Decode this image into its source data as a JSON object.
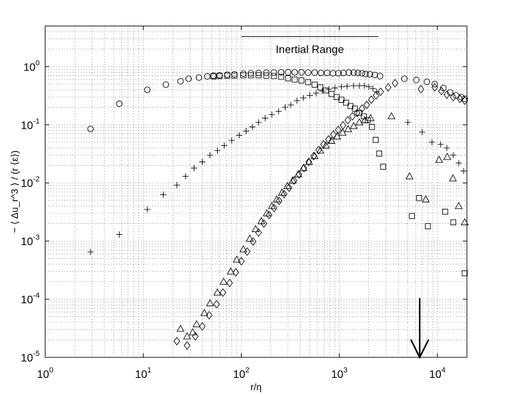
{
  "chart_data": {
    "type": "scatter",
    "xscale": "log",
    "yscale": "log",
    "xlim": [
      1,
      20000
    ],
    "ylim": [
      1e-05,
      5
    ],
    "grid": true,
    "xlabel": "r/η",
    "ylabel": "− ⟨ Δu_r^3 ⟩ / (r ⟨ε⟩)",
    "x_ticks": [
      {
        "base": "10",
        "exp": "0",
        "value": 1
      },
      {
        "base": "10",
        "exp": "1",
        "value": 10
      },
      {
        "base": "10",
        "exp": "2",
        "value": 100
      },
      {
        "base": "10",
        "exp": "3",
        "value": 1000
      },
      {
        "base": "10",
        "exp": "4",
        "value": 10000
      }
    ],
    "y_ticks": [
      {
        "base": "10",
        "exp": "-5",
        "value": 1e-05
      },
      {
        "base": "10",
        "exp": "-4",
        "value": 0.0001
      },
      {
        "base": "10",
        "exp": "-3",
        "value": 0.001
      },
      {
        "base": "10",
        "exp": "-2",
        "value": 0.01
      },
      {
        "base": "10",
        "exp": "-1",
        "value": 0.1
      },
      {
        "base": "10",
        "exp": "0",
        "value": 1
      }
    ],
    "annotations": {
      "inertial_range": {
        "text": "Inertial Range",
        "x_start": 100,
        "x_end": 2500,
        "y": 3.3
      },
      "arrow": {
        "x": 6600,
        "y_from": 3e-05,
        "y_to": 1e-05
      }
    },
    "series": [
      {
        "marker": "circle",
        "points": [
          [
            2.9,
            0.085
          ],
          [
            5.7,
            0.23
          ],
          [
            11,
            0.4
          ],
          [
            17,
            0.49
          ],
          [
            24,
            0.56
          ],
          [
            29,
            0.62
          ],
          [
            37,
            0.65
          ],
          [
            45,
            0.68
          ],
          [
            52,
            0.7
          ],
          [
            60,
            0.71
          ],
          [
            72,
            0.73
          ],
          [
            85,
            0.74
          ],
          [
            105,
            0.76
          ],
          [
            125,
            0.77
          ],
          [
            150,
            0.78
          ],
          [
            180,
            0.79
          ],
          [
            215,
            0.79
          ],
          [
            255,
            0.8
          ],
          [
            300,
            0.8
          ],
          [
            350,
            0.8
          ],
          [
            410,
            0.8
          ],
          [
            480,
            0.79
          ],
          [
            560,
            0.79
          ],
          [
            650,
            0.78
          ],
          [
            750,
            0.78
          ],
          [
            860,
            0.77
          ],
          [
            980,
            0.77
          ],
          [
            1100,
            0.78
          ],
          [
            1250,
            0.79
          ],
          [
            1400,
            0.79
          ],
          [
            1550,
            0.78
          ],
          [
            1700,
            0.77
          ],
          [
            1850,
            0.75
          ],
          [
            2050,
            0.74
          ],
          [
            2300,
            0.72
          ],
          [
            2600,
            0.69
          ],
          [
            4600,
            0.62
          ],
          [
            6100,
            0.59
          ],
          [
            7800,
            0.55
          ],
          [
            9400,
            0.5
          ],
          [
            11500,
            0.43
          ],
          [
            13500,
            0.36
          ],
          [
            15500,
            0.32
          ],
          [
            17500,
            0.3
          ],
          [
            19000,
            0.28
          ]
        ]
      },
      {
        "marker": "square",
        "points": [
          [
            52,
            0.68
          ],
          [
            60,
            0.69
          ],
          [
            72,
            0.7
          ],
          [
            85,
            0.7
          ],
          [
            105,
            0.71
          ],
          [
            125,
            0.71
          ],
          [
            150,
            0.71
          ],
          [
            180,
            0.7
          ],
          [
            215,
            0.69
          ],
          [
            255,
            0.67
          ],
          [
            300,
            0.63
          ],
          [
            350,
            0.6
          ],
          [
            410,
            0.58
          ],
          [
            480,
            0.54
          ],
          [
            560,
            0.49
          ],
          [
            640,
            0.44
          ],
          [
            730,
            0.39
          ],
          [
            830,
            0.34
          ],
          [
            940,
            0.3
          ],
          [
            1050,
            0.27
          ],
          [
            1170,
            0.24
          ],
          [
            1300,
            0.21
          ],
          [
            1440,
            0.19
          ],
          [
            1600,
            0.16
          ],
          [
            1780,
            0.14
          ],
          [
            1950,
            0.12
          ],
          [
            2150,
            0.092
          ],
          [
            2350,
            0.055
          ],
          [
            2550,
            0.032
          ],
          [
            2800,
            0.019
          ],
          [
            5500,
            0.0027
          ],
          [
            6500,
            0.0055
          ],
          [
            8000,
            0.0018
          ],
          [
            12000,
            0.0032
          ],
          [
            14500,
            0.0021
          ],
          [
            19000,
            0.00028
          ]
        ]
      },
      {
        "marker": "plus",
        "points": [
          [
            2.9,
            0.00065
          ],
          [
            5.7,
            0.0013
          ],
          [
            11,
            0.0035
          ],
          [
            16,
            0.0063
          ],
          [
            22,
            0.0092
          ],
          [
            27,
            0.013
          ],
          [
            33,
            0.018
          ],
          [
            40,
            0.023
          ],
          [
            48,
            0.03
          ],
          [
            57,
            0.036
          ],
          [
            67,
            0.044
          ],
          [
            80,
            0.054
          ],
          [
            95,
            0.066
          ],
          [
            112,
            0.078
          ],
          [
            130,
            0.092
          ],
          [
            150,
            0.11
          ],
          [
            175,
            0.13
          ],
          [
            205,
            0.15
          ],
          [
            240,
            0.17
          ],
          [
            280,
            0.2
          ],
          [
            320,
            0.22
          ],
          [
            370,
            0.26
          ],
          [
            430,
            0.29
          ],
          [
            500,
            0.32
          ],
          [
            580,
            0.35
          ],
          [
            670,
            0.38
          ],
          [
            780,
            0.41
          ],
          [
            900,
            0.43
          ],
          [
            1050,
            0.45
          ],
          [
            1200,
            0.46
          ],
          [
            1400,
            0.47
          ],
          [
            1600,
            0.47
          ],
          [
            1800,
            0.47
          ],
          [
            2000,
            0.45
          ],
          [
            2200,
            0.42
          ],
          [
            2400,
            0.37
          ],
          [
            5000,
            0.11
          ],
          [
            7000,
            0.075
          ],
          [
            8800,
            0.05
          ],
          [
            10800,
            0.046
          ],
          [
            12500,
            0.04
          ],
          [
            14500,
            0.03
          ],
          [
            16500,
            0.022
          ],
          [
            18500,
            0.016
          ]
        ]
      },
      {
        "marker": "triangle",
        "points": [
          [
            24,
            3.1e-05
          ],
          [
            28,
            2.3e-05
          ],
          [
            32,
            2.7e-05
          ],
          [
            35,
            3.7e-05
          ],
          [
            42,
            5.8e-05
          ],
          [
            48,
            8.5e-05
          ],
          [
            57,
            0.00013
          ],
          [
            66,
            0.0002
          ],
          [
            78,
            0.0003
          ],
          [
            90,
            0.00048
          ],
          [
            105,
            0.00072
          ],
          [
            122,
            0.0011
          ],
          [
            140,
            0.0016
          ],
          [
            160,
            0.0022
          ],
          [
            182,
            0.003
          ],
          [
            205,
            0.004
          ],
          [
            230,
            0.0052
          ],
          [
            260,
            0.0068
          ],
          [
            295,
            0.0088
          ],
          [
            335,
            0.011
          ],
          [
            380,
            0.014
          ],
          [
            430,
            0.018
          ],
          [
            490,
            0.023
          ],
          [
            560,
            0.029
          ],
          [
            640,
            0.036
          ],
          [
            730,
            0.044
          ],
          [
            830,
            0.053
          ],
          [
            950,
            0.063
          ],
          [
            1080,
            0.073
          ],
          [
            1230,
            0.084
          ],
          [
            1400,
            0.095
          ],
          [
            1600,
            0.11
          ],
          [
            1820,
            0.12
          ],
          [
            2080,
            0.13
          ],
          [
            3400,
            0.14
          ],
          [
            5200,
            0.013
          ],
          [
            7600,
            0.0052
          ],
          [
            10400,
            0.025
          ],
          [
            12600,
            0.028
          ],
          [
            14400,
            0.012
          ],
          [
            16500,
            0.004
          ],
          [
            19000,
            0.0021
          ]
        ]
      },
      {
        "marker": "diamond",
        "points": [
          [
            22,
            1.9e-05
          ],
          [
            28,
            1.6e-05
          ],
          [
            34,
            2.3e-05
          ],
          [
            40,
            3.4e-05
          ],
          [
            47,
            5.3e-05
          ],
          [
            56,
            8.2e-05
          ],
          [
            65,
            0.00013
          ],
          [
            76,
            0.00019
          ],
          [
            88,
            0.00029
          ],
          [
            100,
            0.00045
          ],
          [
            115,
            0.00066
          ],
          [
            132,
            0.00098
          ],
          [
            150,
            0.0014
          ],
          [
            170,
            0.002
          ],
          [
            192,
            0.0028
          ],
          [
            216,
            0.0037
          ],
          [
            243,
            0.0049
          ],
          [
            273,
            0.0064
          ],
          [
            307,
            0.0083
          ],
          [
            345,
            0.011
          ],
          [
            388,
            0.014
          ],
          [
            435,
            0.018
          ],
          [
            488,
            0.023
          ],
          [
            548,
            0.029
          ],
          [
            615,
            0.037
          ],
          [
            690,
            0.046
          ],
          [
            775,
            0.056
          ],
          [
            870,
            0.068
          ],
          [
            975,
            0.082
          ],
          [
            1090,
            0.098
          ],
          [
            1220,
            0.12
          ],
          [
            1360,
            0.14
          ],
          [
            1520,
            0.16
          ],
          [
            1700,
            0.19
          ],
          [
            1900,
            0.22
          ],
          [
            2120,
            0.27
          ],
          [
            2370,
            0.32
          ],
          [
            2640,
            0.37
          ],
          [
            3150,
            0.44
          ],
          [
            3700,
            0.52
          ],
          [
            6800,
            0.41
          ],
          [
            9400,
            0.44
          ],
          [
            11000,
            0.38
          ],
          [
            12500,
            0.33
          ],
          [
            14500,
            0.3
          ],
          [
            17000,
            0.28
          ],
          [
            19000,
            0.26
          ]
        ]
      }
    ]
  }
}
